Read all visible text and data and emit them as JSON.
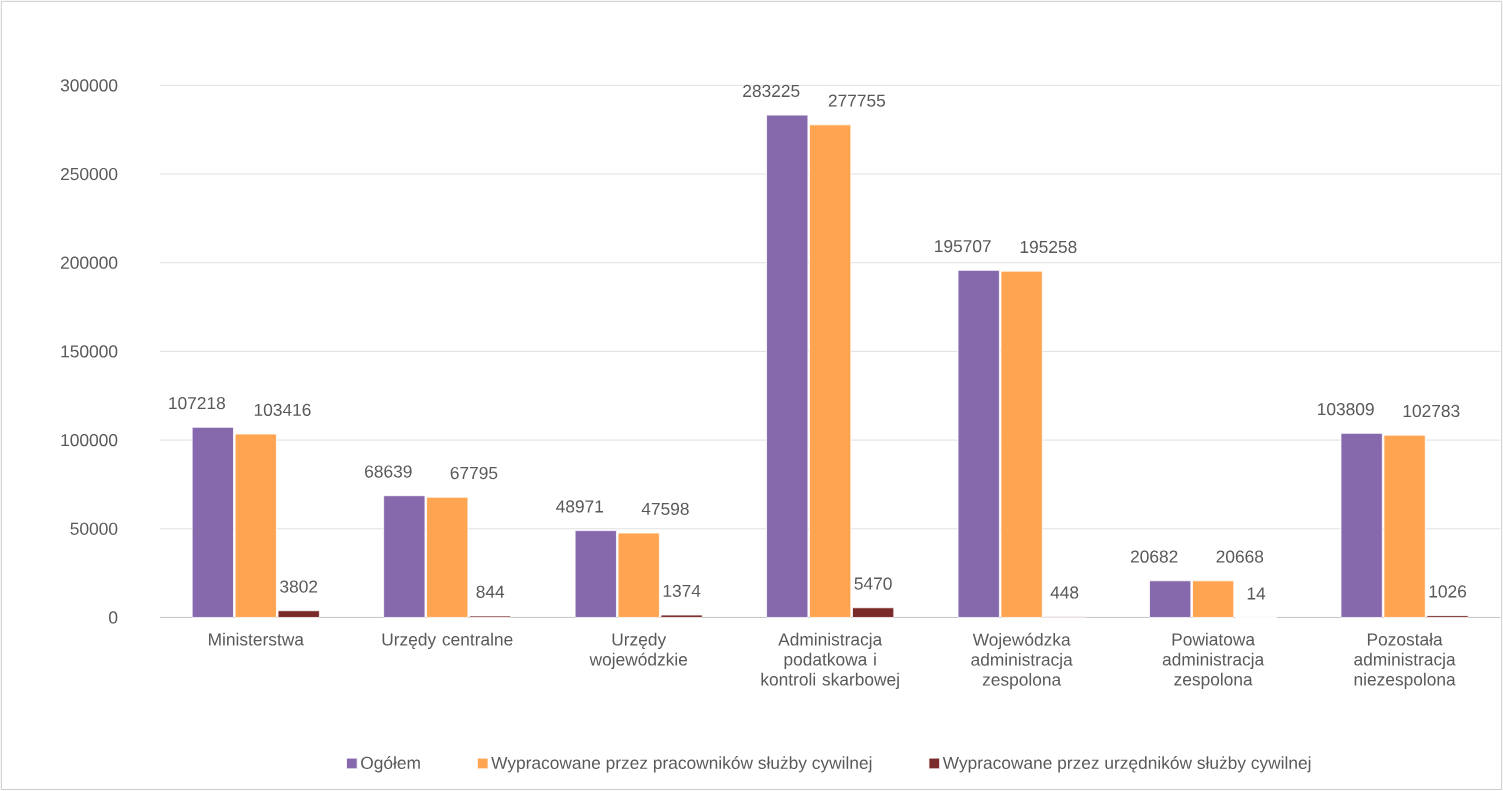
{
  "chart_data": {
    "type": "bar",
    "categories": [
      "Ministerstwa",
      "Urzędy centralne",
      "Urzędy wojewódzkie",
      "Administracja podatkowa i kontroli skarbowej",
      "Wojewódzka administracja zespolona",
      "Powiatowa administracja zespolona",
      "Pozostała administracja niezespolona"
    ],
    "series": [
      {
        "name": "Ogółem",
        "color": "#8668ac",
        "values": [
          107218,
          68639,
          48971,
          283225,
          195707,
          20682,
          103809
        ]
      },
      {
        "name": "Wypracowane przez pracowników służby cywilnej",
        "color": "#ffa552",
        "values": [
          103416,
          67795,
          47598,
          277755,
          195258,
          20668,
          102783
        ]
      },
      {
        "name": "Wypracowane przez urzędników służby cywilnej",
        "color": "#7b2a2a",
        "values": [
          3802,
          844,
          1374,
          5470,
          448,
          14,
          1026
        ]
      }
    ],
    "ylim": [
      0,
      300000
    ],
    "yticks": [
      0,
      50000,
      100000,
      150000,
      200000,
      250000,
      300000
    ],
    "grid": "y",
    "legend": "bottom",
    "data_labels": true
  }
}
